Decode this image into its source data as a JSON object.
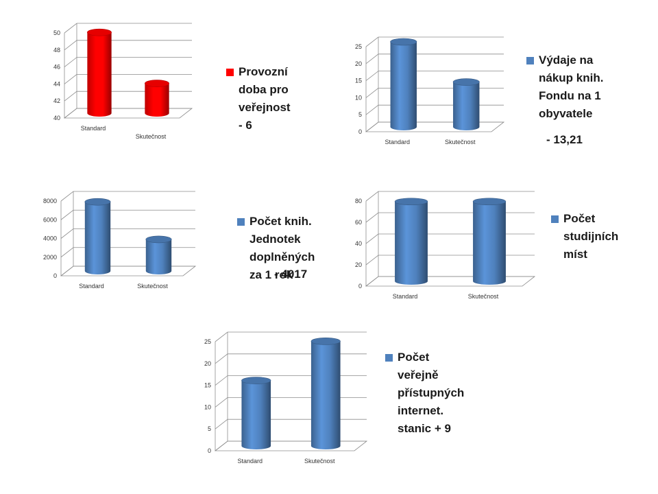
{
  "chart_data": [
    {
      "type": "bar",
      "categories": [
        "Standard",
        "Skutečnost"
      ],
      "series": [
        {
          "name": "Provozní doba pro veřejnost - 6",
          "values": [
            49.5,
            43.5
          ]
        }
      ],
      "yticks": [
        "40",
        "42",
        "44",
        "46",
        "48",
        "50"
      ],
      "ylim": [
        40,
        50
      ],
      "color": "#ff0000",
      "legend_lines": [
        "Provozní",
        "doba pro",
        "veřejnost",
        "- 6"
      ]
    },
    {
      "type": "bar",
      "categories": [
        "Standard",
        "Skutečnost"
      ],
      "series": [
        {
          "name": "Výdaje na nákup knih. Fondu na 1 obyvatele",
          "values": [
            25,
            13.2
          ]
        }
      ],
      "yticks": [
        "0",
        "5",
        "10",
        "15",
        "20",
        "25"
      ],
      "ylim": [
        0,
        25
      ],
      "color": "#4f81bd",
      "legend_lines": [
        "Výdaje na",
        "nákup knih.",
        "Fondu na 1",
        "obyvatele"
      ],
      "extra_label": "- 13,21"
    },
    {
      "type": "bar",
      "categories": [
        "Standard",
        "Skutečnost"
      ],
      "series": [
        {
          "name": "Počet knih. Jednotek doplněných za 1 rok",
          "values": [
            7400,
            3383
          ]
        }
      ],
      "yticks": [
        "0",
        "2000",
        "4000",
        "6000",
        "8000"
      ],
      "ylim": [
        0,
        8000
      ],
      "color": "#4f81bd",
      "legend_lines": [
        "Počet knih.",
        "Jednotek",
        "doplněných",
        "za 1 rok"
      ],
      "extra_label": "- 4017"
    },
    {
      "type": "bar",
      "categories": [
        "Standard",
        "Skutečnost"
      ],
      "series": [
        {
          "name": "Počet studijních míst",
          "values": [
            75,
            75
          ]
        }
      ],
      "yticks": [
        "0",
        "20",
        "40",
        "60",
        "80"
      ],
      "ylim": [
        0,
        80
      ],
      "color": "#4f81bd",
      "legend_lines": [
        "Počet",
        "studijních",
        "míst"
      ]
    },
    {
      "type": "bar",
      "categories": [
        "Standard",
        "Skutečnost"
      ],
      "series": [
        {
          "name": "Počet veřejně přístupných internet. stanic + 9",
          "values": [
            15,
            24
          ]
        }
      ],
      "yticks": [
        "0",
        "5",
        "10",
        "15",
        "20",
        "25"
      ],
      "ylim": [
        0,
        25
      ],
      "color": "#4f81bd",
      "legend_lines": [
        "Počet",
        "veřejně",
        "přístupných",
        "internet.",
        "stanic + 9"
      ]
    }
  ]
}
